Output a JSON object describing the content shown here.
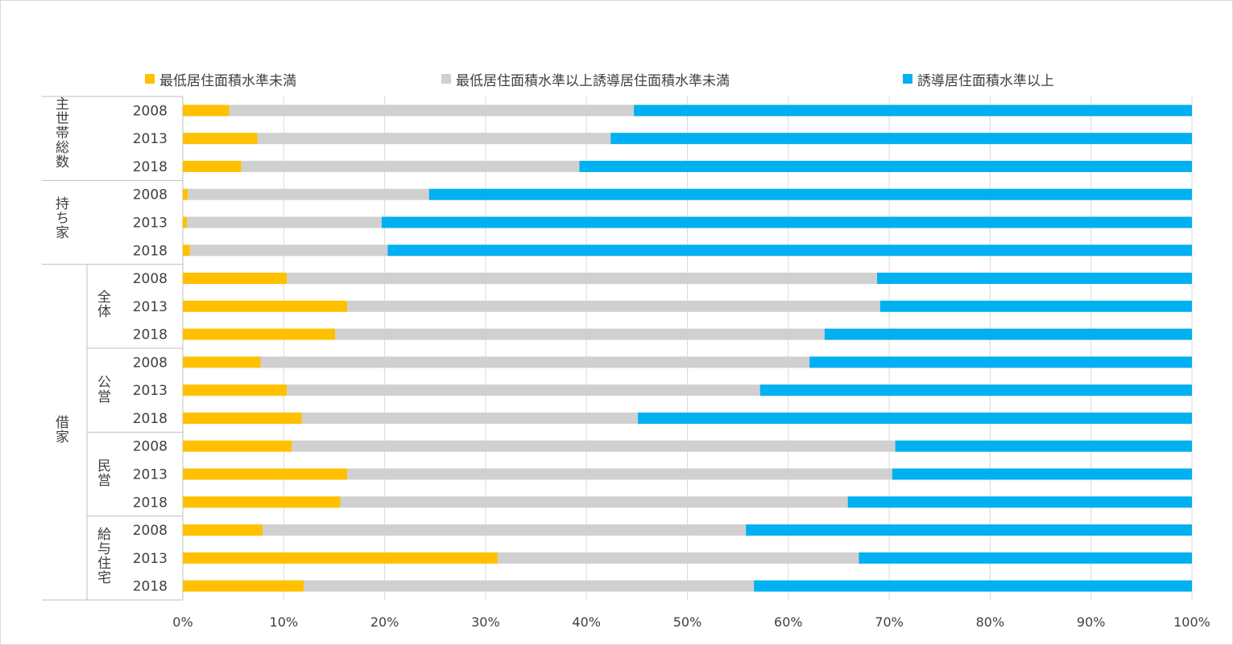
{
  "chart_data": {
    "type": "bar",
    "orientation": "horizontal",
    "stacked": "percent",
    "colors": [
      "#FFC000",
      "#D0D0D0",
      "#00B0F0"
    ],
    "legend_position": "top",
    "grid": true,
    "xlim": [
      0,
      100
    ],
    "x_ticks": [
      "0%",
      "10%",
      "20%",
      "30%",
      "40%",
      "50%",
      "60%",
      "70%",
      "80%",
      "90%",
      "100%"
    ],
    "categories": [
      "2008",
      "2013",
      "2018",
      "2008",
      "2013",
      "2018",
      "2008",
      "2013",
      "2018",
      "2008",
      "2013",
      "2018",
      "2008",
      "2013",
      "2018",
      "2008",
      "2013",
      "2018"
    ],
    "groups": [
      {
        "label": "主世帯総数",
        "rows": [
          0,
          1,
          2
        ]
      },
      {
        "label": "持ち家",
        "rows": [
          3,
          4,
          5
        ]
      },
      {
        "label": "借家",
        "rows": [
          6,
          17
        ],
        "subgroups": [
          {
            "label": "全体",
            "rows": [
              6,
              7,
              8
            ]
          },
          {
            "label": "公営",
            "rows": [
              9,
              10,
              11
            ]
          },
          {
            "label": "民営",
            "rows": [
              12,
              13,
              14
            ]
          },
          {
            "label": "給与住宅",
            "rows": [
              15,
              16,
              17
            ]
          }
        ]
      }
    ],
    "series": [
      {
        "name": "最低居住面積水準未満",
        "values": [
          4.6,
          7.4,
          5.8,
          0.5,
          0.4,
          0.7,
          10.3,
          16.3,
          15.1,
          7.7,
          10.3,
          11.8,
          10.8,
          16.3,
          15.6,
          7.9,
          31.2,
          12.0
        ]
      },
      {
        "name": "最低居住面積水準以上誘導居住面積水準未満",
        "values": [
          40.1,
          35.0,
          33.5,
          23.9,
          19.3,
          19.6,
          58.5,
          52.8,
          48.5,
          54.4,
          46.9,
          33.3,
          59.8,
          54.0,
          50.3,
          47.9,
          35.8,
          44.6
        ]
      },
      {
        "name": "誘導居住面積水準以上",
        "values": [
          55.3,
          57.6,
          60.7,
          75.6,
          80.3,
          79.7,
          31.2,
          30.9,
          36.4,
          37.9,
          42.8,
          54.9,
          29.4,
          29.7,
          34.1,
          44.2,
          33.0,
          43.4
        ]
      }
    ]
  }
}
